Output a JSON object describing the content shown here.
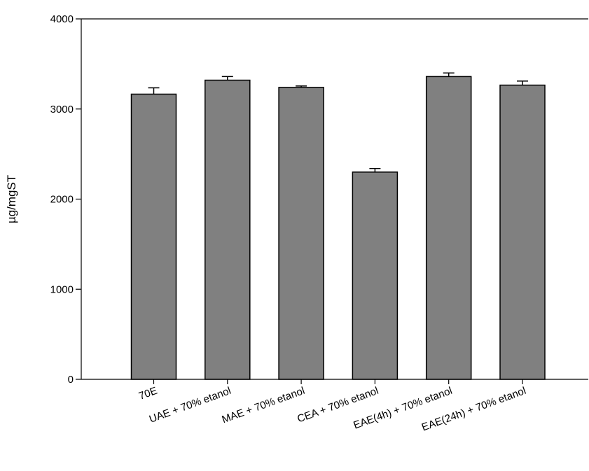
{
  "chart_data": {
    "type": "bar",
    "title": "",
    "xlabel": "",
    "ylabel": "µg/mgST",
    "ylim": [
      0,
      4000
    ],
    "yticks": [
      0,
      1000,
      2000,
      3000,
      4000
    ],
    "ytick_labels": [
      "0",
      "1000",
      "2000",
      "3000",
      "4000"
    ],
    "grid": false,
    "error_bars": "upper",
    "categories": [
      "70E",
      "UAE + 70% etanol",
      "MAE + 70% etanol",
      "CEA + 70% etanol",
      "EAE(4h) + 70% etanol",
      "EAE(24h) + 70% etanol"
    ],
    "values": [
      3165,
      3320,
      3240,
      2300,
      3360,
      3265
    ],
    "errors": [
      70,
      40,
      15,
      40,
      40,
      45
    ],
    "colors": {
      "bar_fill": "#808080",
      "bar_edge": "#000000",
      "axis": "#000000"
    }
  }
}
